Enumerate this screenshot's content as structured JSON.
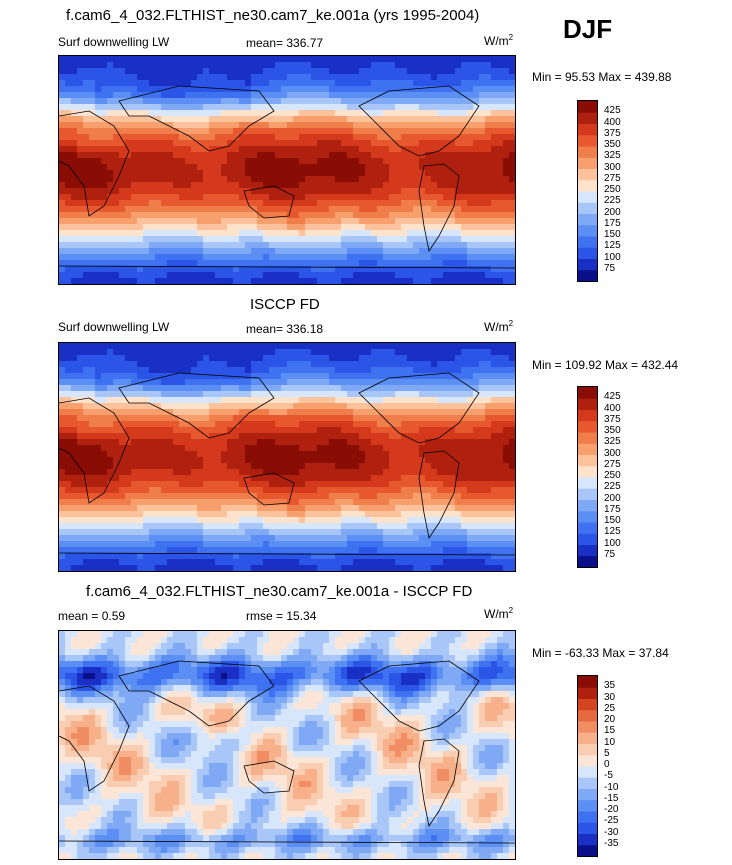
{
  "season": "DJF",
  "colors": {
    "model_obs_scale": [
      "#0a0f8a",
      "#1a2fc4",
      "#2a55e6",
      "#3e72f0",
      "#5b8ff3",
      "#7fa9f5",
      "#a8c6f7",
      "#d8e6fb",
      "#fde3cc",
      "#fbc29c",
      "#f8a06d",
      "#f07e4a",
      "#e8582f",
      "#d4391c",
      "#b0200f",
      "#8a0d05"
    ],
    "diff_scale": [
      "#0a0f8a",
      "#1a2fc4",
      "#2a55e6",
      "#3e72f0",
      "#5b8ff3",
      "#7fa9f5",
      "#a8c6f7",
      "#d8e6fb",
      "#fbe5d6",
      "#f9cdb2",
      "#f7b08a",
      "#f08d62",
      "#e66a40",
      "#d4441f",
      "#b0200f",
      "#8a0d05"
    ],
    "map_outline": "#000000"
  },
  "panels": [
    {
      "title": "f.cam6_4_032.FLTHIST_ne30.cam7_ke.001a (yrs 1995-2004)",
      "left_label": "Surf downwelling LW",
      "center_label": "mean= 336.77",
      "units": "W/m",
      "units_exp": "2",
      "stats": "Min =  95.53 Max = 439.88",
      "chart_data": {
        "type": "heatmap",
        "variable": "Surf downwelling LW",
        "mean": 336.77,
        "min": 95.53,
        "max": 439.88,
        "colorbar_ticks": [
          "425",
          "400",
          "375",
          "350",
          "325",
          "300",
          "275",
          "250",
          "225",
          "200",
          "175",
          "150",
          "125",
          "100",
          "75"
        ]
      }
    },
    {
      "title": "ISCCP FD",
      "left_label": "Surf downwelling LW",
      "center_label": "mean= 336.18",
      "units": "W/m",
      "units_exp": "2",
      "stats": "Min = 109.92 Max = 432.44",
      "chart_data": {
        "type": "heatmap",
        "variable": "Surf downwelling LW",
        "mean": 336.18,
        "min": 109.92,
        "max": 432.44,
        "colorbar_ticks": [
          "425",
          "400",
          "375",
          "350",
          "325",
          "300",
          "275",
          "250",
          "225",
          "200",
          "175",
          "150",
          "125",
          "100",
          "75"
        ]
      }
    },
    {
      "title": "f.cam6_4_032.FLTHIST_ne30.cam7_ke.001a - ISCCP FD",
      "left_label": "mean =   0.59",
      "center_label": "rmse =  15.34",
      "units": "W/m",
      "units_exp": "2",
      "stats": "Min = -63.33 Max =  37.84",
      "chart_data": {
        "type": "heatmap",
        "variable": "difference",
        "mean": 0.59,
        "rmse": 15.34,
        "min": -63.33,
        "max": 37.84,
        "colorbar_ticks": [
          "35",
          "30",
          "25",
          "20",
          "15",
          "10",
          "5",
          "0",
          "-5",
          "-10",
          "-15",
          "-20",
          "-25",
          "-30",
          "-35"
        ]
      }
    }
  ]
}
